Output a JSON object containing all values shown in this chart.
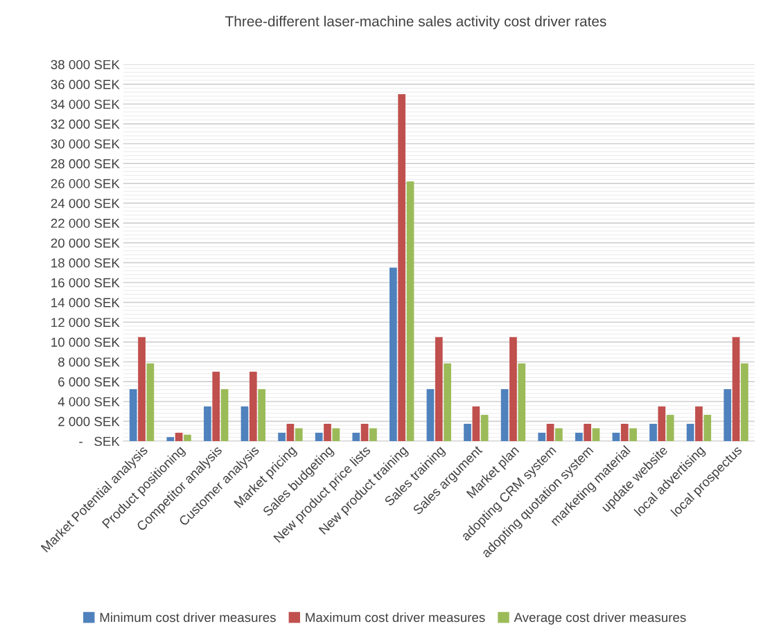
{
  "chart_data": {
    "type": "bar",
    "title": "Three-different laser-machine sales activity cost driver rates",
    "categories": [
      "Market Potential analysis",
      "Product positioning",
      "Competitor analysis",
      "Customer analysis",
      "Market pricing",
      "Sales budgeting",
      "New product price lists",
      "New product training",
      "Sales training",
      "Sales argument",
      "Market plan",
      "adopting CRM system",
      "adopting quotation system",
      "marketing material",
      "update website",
      "local advertising",
      "local prospectus"
    ],
    "series": [
      {
        "name": "Minimum cost driver measures",
        "color": "#4f81bd",
        "values": [
          5250,
          400,
          3500,
          3500,
          850,
          850,
          850,
          17500,
          5250,
          1750,
          5250,
          850,
          850,
          850,
          1750,
          1750,
          5250
        ]
      },
      {
        "name": "Maximum cost driver measures",
        "color": "#c0504d",
        "values": [
          10500,
          850,
          7000,
          7000,
          1750,
          1750,
          1750,
          35000,
          10500,
          3500,
          10500,
          1750,
          1750,
          1750,
          3500,
          3500,
          10500
        ]
      },
      {
        "name": "Average cost driver measures",
        "color": "#9bbb59",
        "values": [
          7850,
          650,
          5250,
          5250,
          1300,
          1300,
          1300,
          26200,
          7850,
          2650,
          7850,
          1300,
          1300,
          1300,
          2650,
          2650,
          7850
        ]
      }
    ],
    "ylim": [
      0,
      38000
    ],
    "yticks": [
      {
        "value": 0,
        "label": "-   SEK"
      },
      {
        "value": 2000,
        "label": "2 000 SEK"
      },
      {
        "value": 4000,
        "label": "4 000 SEK"
      },
      {
        "value": 6000,
        "label": "6 000 SEK"
      },
      {
        "value": 8000,
        "label": "8 000 SEK"
      },
      {
        "value": 10000,
        "label": "10 000 SEK"
      },
      {
        "value": 12000,
        "label": "12 000 SEK"
      },
      {
        "value": 14000,
        "label": "14 000 SEK"
      },
      {
        "value": 16000,
        "label": "16 000 SEK"
      },
      {
        "value": 18000,
        "label": "18 000 SEK"
      },
      {
        "value": 20000,
        "label": "20 000 SEK"
      },
      {
        "value": 22000,
        "label": "22 000 SEK"
      },
      {
        "value": 24000,
        "label": "24 000 SEK"
      },
      {
        "value": 26000,
        "label": "26 000 SEK"
      },
      {
        "value": 28000,
        "label": "28 000 SEK"
      },
      {
        "value": 30000,
        "label": "30 000 SEK"
      },
      {
        "value": 32000,
        "label": "32 000 SEK"
      },
      {
        "value": 34000,
        "label": "34 000 SEK"
      },
      {
        "value": 36000,
        "label": "36 000 SEK"
      },
      {
        "value": 38000,
        "label": "38 000 SEK"
      }
    ],
    "grid": "y",
    "legend": "bottom"
  }
}
